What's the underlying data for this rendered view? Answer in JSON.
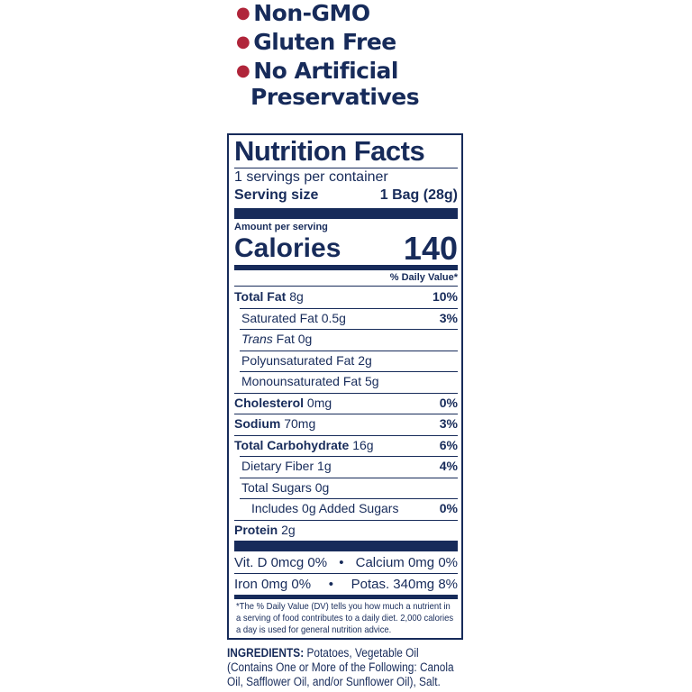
{
  "claims": [
    "Non-GMO",
    "Gluten Free",
    "No Artificial",
    "Preservatives"
  ],
  "label": {
    "title": "Nutrition Facts",
    "servings": "1 servings per container",
    "serving_size_label": "Serving size",
    "serving_size_value": "1 Bag (28g)",
    "amount_per_serving": "Amount per serving",
    "calories_label": "Calories",
    "calories_value": "140",
    "dv_header": "% Daily Value*",
    "nutrients": [
      {
        "name": "Total Fat",
        "amount": "8g",
        "dv": "10%"
      },
      {
        "name": "Saturated Fat",
        "amount": "0.5g",
        "dv": "3%"
      },
      {
        "name": "Trans",
        "name_suffix": "Fat",
        "amount": "0g",
        "dv": ""
      },
      {
        "name": "Polyunsaturated Fat",
        "amount": "2g",
        "dv": ""
      },
      {
        "name": "Monounsaturated Fat",
        "amount": "5g",
        "dv": ""
      },
      {
        "name": "Cholesterol",
        "amount": "0mg",
        "dv": "0%"
      },
      {
        "name": "Sodium",
        "amount": "70mg",
        "dv": "3%"
      },
      {
        "name": "Total Carbohydrate",
        "amount": "16g",
        "dv": "6%"
      },
      {
        "name": "Dietary Fiber",
        "amount": "1g",
        "dv": "4%"
      },
      {
        "name": "Total Sugars",
        "amount": "0g",
        "dv": ""
      },
      {
        "name": "Includes 0g Added Sugars",
        "amount": "",
        "dv": "0%"
      },
      {
        "name": "Protein",
        "amount": "2g",
        "dv": ""
      }
    ],
    "vitamins": [
      [
        "Vit. D 0mcg 0%",
        "•",
        "Calcium 0mg 0%"
      ],
      [
        "Iron 0mg 0%",
        "•",
        "Potas. 340mg 8%"
      ]
    ],
    "footnote": "*The % Daily Value (DV) tells you how much a nutrient in a serving of food contributes to a daily diet. 2,000 calories a day is used for general nutrition advice."
  },
  "ingredients": {
    "label": "INGREDIENTS:",
    "text": "Potatoes, Vegetable Oil (Contains One or More of the Following: Canola Oil, Safflower Oil, and/or Sunflower Oil), Salt."
  }
}
